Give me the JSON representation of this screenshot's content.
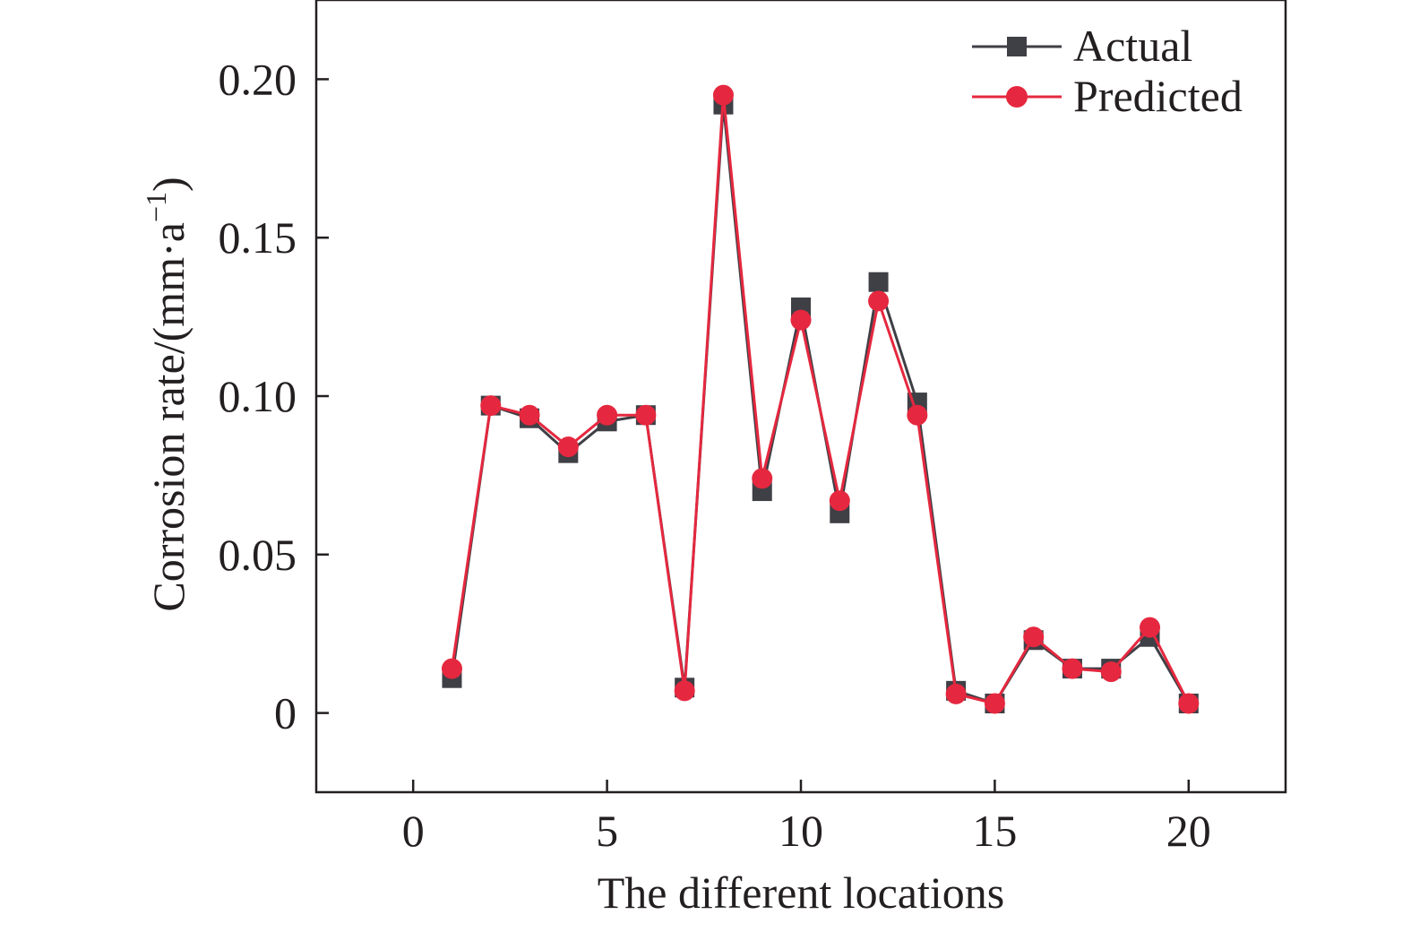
{
  "colors": {
    "actual": "#3f3f46",
    "predicted": "#e5283f",
    "axis": "#231f20"
  },
  "chart_data": {
    "type": "line",
    "xlabel": "The different locations",
    "ylabel": "Corrosion rate/(mm·a",
    "ylabel_sup": "−1",
    "ylabel_close": ")",
    "xlim": [
      -2.5,
      22.5
    ],
    "ylim": [
      -0.025,
      0.225
    ],
    "x_ticks": [
      0,
      5,
      10,
      15,
      20
    ],
    "x_tick_labels": [
      "0",
      "5",
      "10",
      "15",
      "20"
    ],
    "y_ticks": [
      0,
      0.05,
      0.1,
      0.15,
      0.2
    ],
    "y_tick_labels": [
      "0",
      "0.05",
      "0.10",
      "0.15",
      "0.20"
    ],
    "grid": false,
    "legend_position": "top-right",
    "x": [
      1,
      2,
      3,
      4,
      5,
      6,
      7,
      8,
      9,
      10,
      11,
      12,
      13,
      14,
      15,
      16,
      17,
      18,
      19,
      20
    ],
    "series": [
      {
        "name": "Actual",
        "marker": "square",
        "color": "#3f3f46",
        "values": [
          0.011,
          0.097,
          0.093,
          0.082,
          0.092,
          0.094,
          0.008,
          0.192,
          0.07,
          0.128,
          0.063,
          0.136,
          0.098,
          0.007,
          0.003,
          0.023,
          0.014,
          0.014,
          0.024,
          0.003
        ]
      },
      {
        "name": "Predicted",
        "marker": "circle",
        "color": "#e5283f",
        "values": [
          0.014,
          0.097,
          0.094,
          0.084,
          0.094,
          0.094,
          0.007,
          0.195,
          0.074,
          0.124,
          0.067,
          0.13,
          0.094,
          0.006,
          0.003,
          0.024,
          0.014,
          0.013,
          0.027,
          0.003
        ]
      }
    ]
  }
}
